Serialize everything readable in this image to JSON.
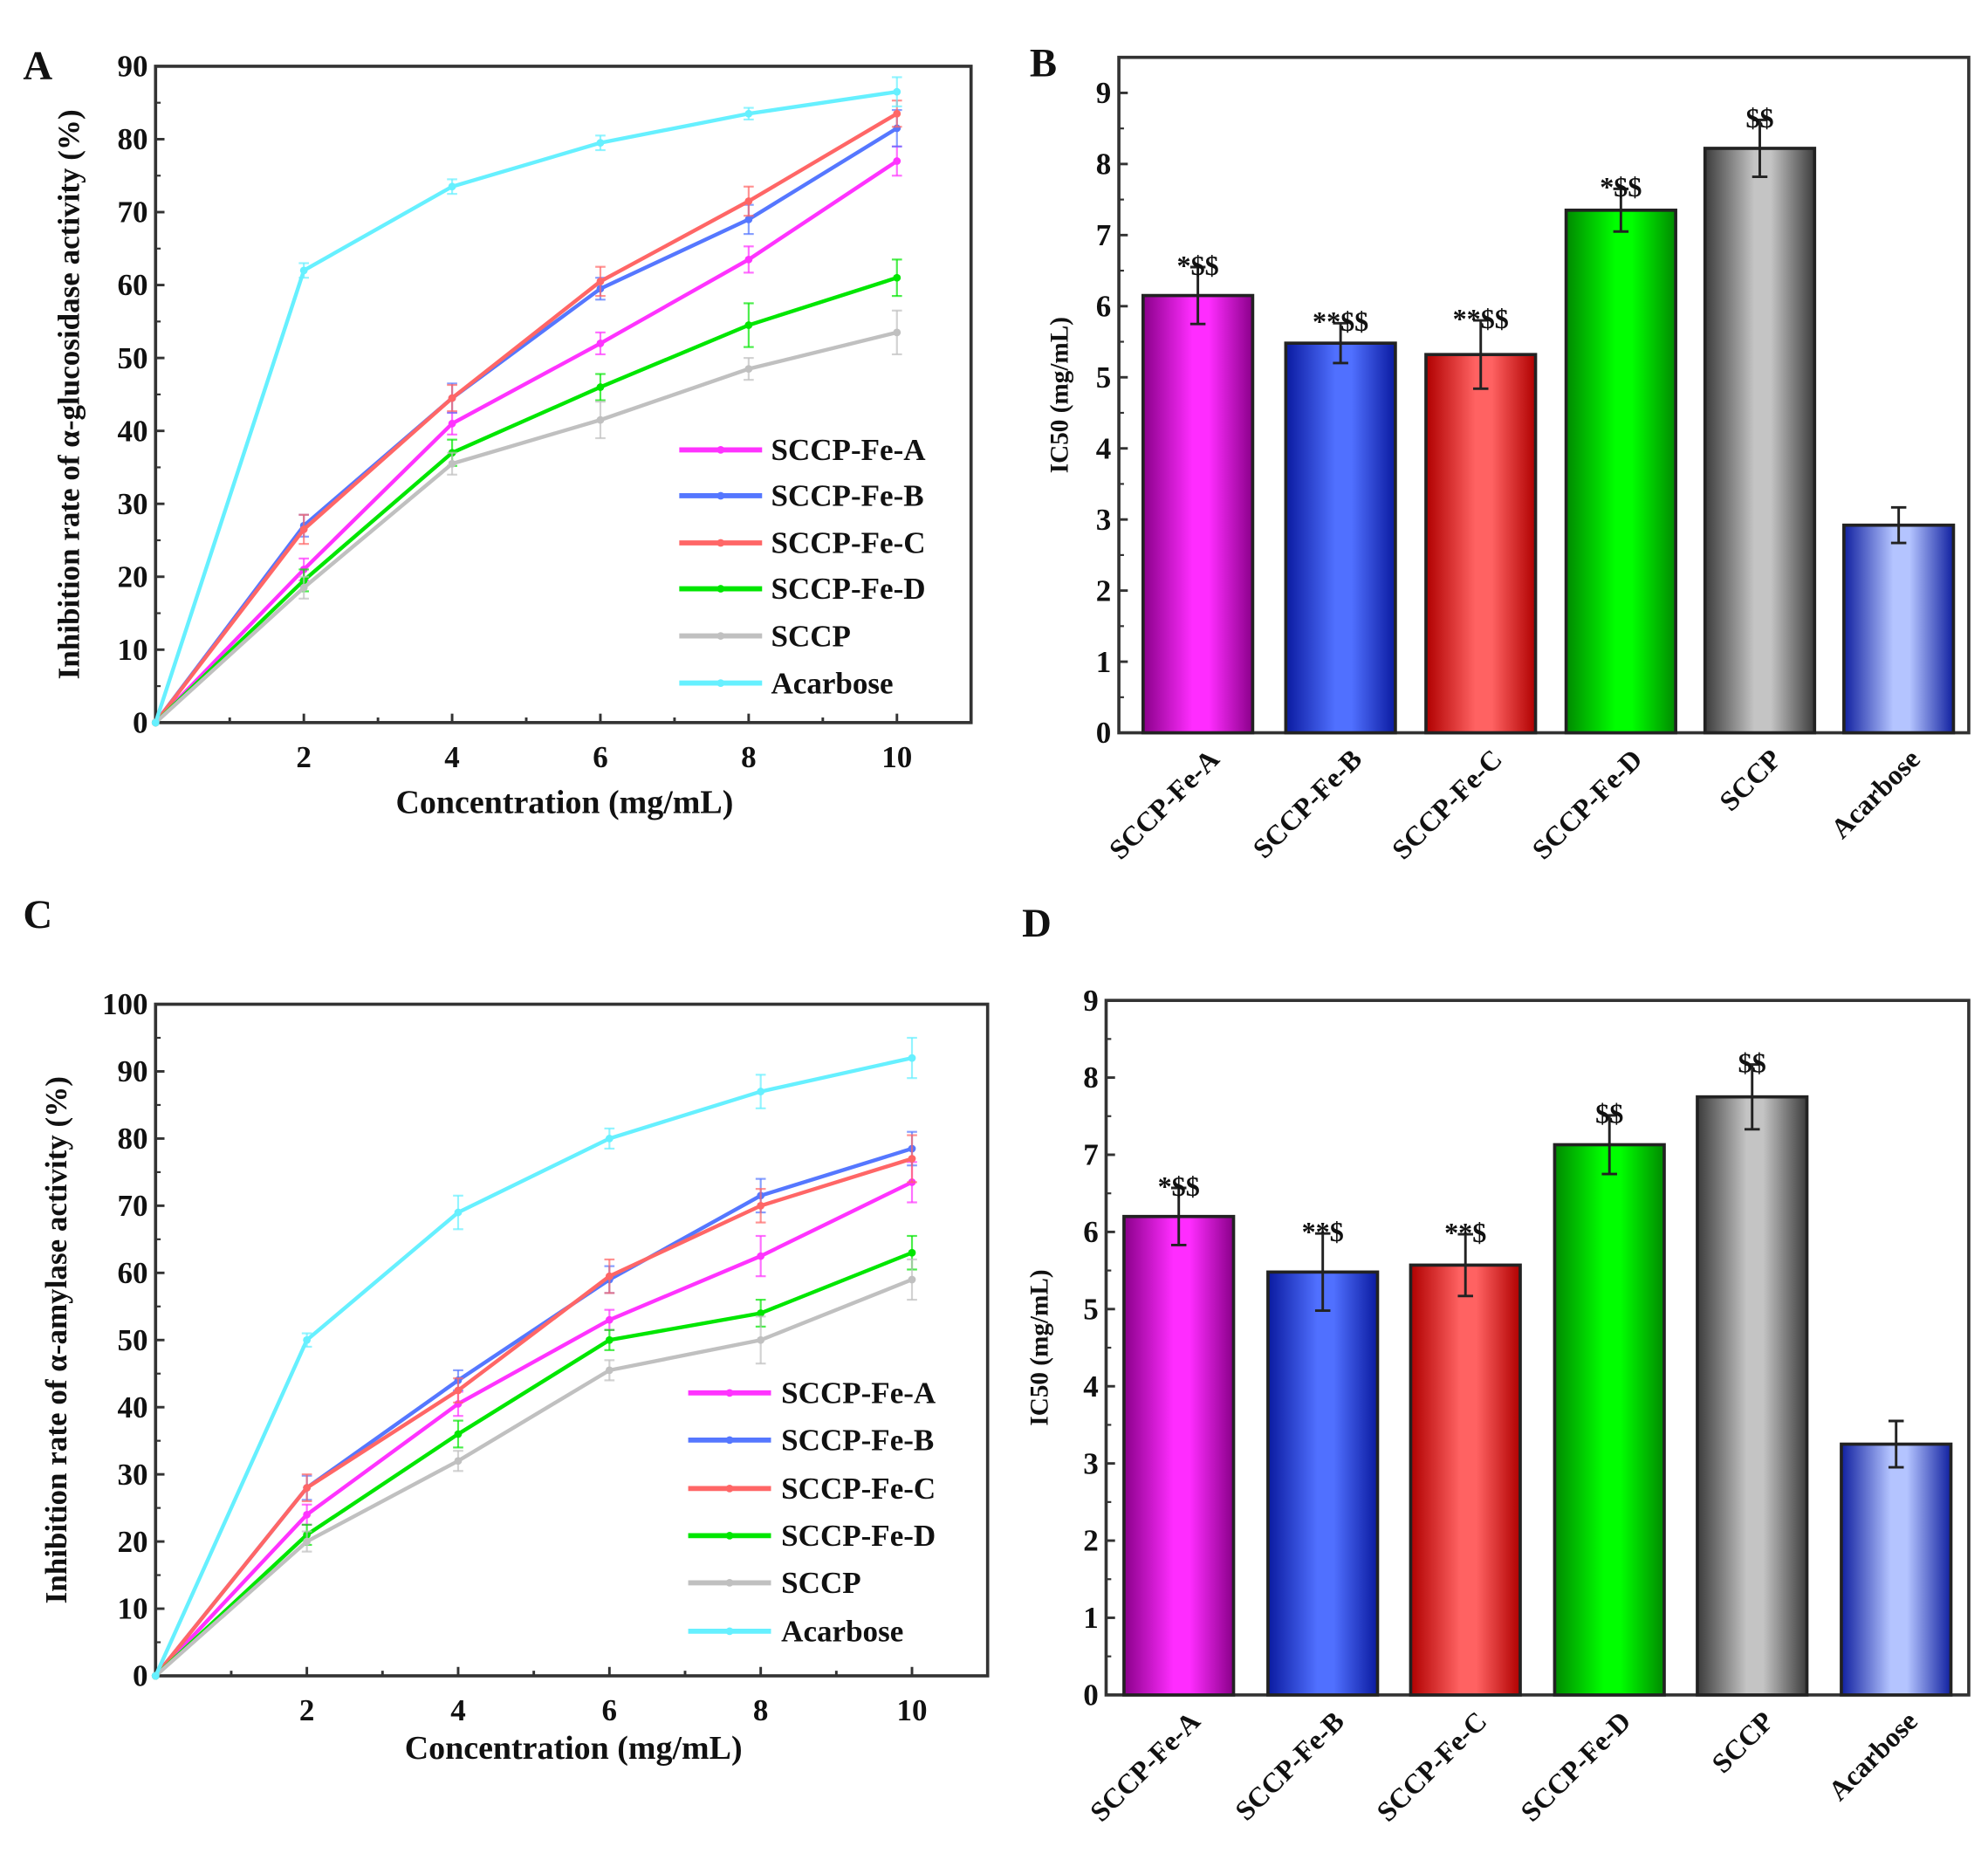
{
  "chart_data": [
    {
      "panel": "A",
      "type": "line",
      "xlabel": "Concentration (mg/mL)",
      "ylabel": "Inhibition rate of α-glucosidase activity (%)",
      "xlim": [
        0,
        11
      ],
      "ylim": [
        0,
        90
      ],
      "xticks": [
        2,
        4,
        6,
        8,
        10
      ],
      "yticks": [
        0,
        10,
        20,
        30,
        40,
        50,
        60,
        70,
        80,
        90
      ],
      "legend_position": "bottom-right",
      "x": [
        0,
        2,
        4,
        6,
        8,
        10
      ],
      "series": [
        {
          "name": "SCCP-Fe-A",
          "color": "#ff33ff",
          "values": [
            0,
            21,
            41,
            52,
            63.5,
            77
          ],
          "errors": [
            0,
            1.5,
            1.5,
            1.5,
            1.8,
            2
          ]
        },
        {
          "name": "SCCP-Fe-B",
          "color": "#5577ff",
          "values": [
            0,
            27,
            44.5,
            59.5,
            69,
            81.5
          ],
          "errors": [
            0,
            1.5,
            2,
            1.5,
            2,
            2.5
          ]
        },
        {
          "name": "SCCP-Fe-C",
          "color": "#ff6666",
          "values": [
            0,
            26.5,
            44.5,
            60.5,
            71.5,
            83.5
          ],
          "errors": [
            0,
            2,
            1.8,
            2,
            2,
            1.8
          ]
        },
        {
          "name": "SCCP-Fe-D",
          "color": "#00e600",
          "values": [
            0,
            19.5,
            37,
            46,
            54.5,
            61
          ],
          "errors": [
            0,
            1.5,
            1.8,
            1.8,
            3,
            2.5
          ]
        },
        {
          "name": "SCCP",
          "color": "#c0c0c0",
          "values": [
            0,
            18.5,
            35.5,
            41.5,
            48.5,
            53.5
          ],
          "errors": [
            0,
            1.5,
            1.5,
            2.5,
            1.5,
            3
          ]
        },
        {
          "name": "Acarbose",
          "color": "#66f0ff",
          "values": [
            0,
            62,
            73.5,
            79.5,
            83.5,
            86.5
          ],
          "errors": [
            0,
            1,
            1,
            1,
            0.8,
            2
          ]
        }
      ]
    },
    {
      "panel": "B",
      "type": "bar",
      "ylabel": "IC50 (mg/mL)",
      "ylim": [
        0,
        9.5
      ],
      "yticks": [
        0,
        1,
        2,
        3,
        4,
        5,
        6,
        7,
        8,
        9
      ],
      "categories": [
        "SCCP-Fe-A",
        "SCCP-Fe-B",
        "SCCP-Fe-C",
        "SCCP-Fe-D",
        "SCCP",
        "Acarbose"
      ],
      "values": [
        6.15,
        5.48,
        5.32,
        7.35,
        8.22,
        2.92
      ],
      "errors": [
        0.4,
        0.28,
        0.48,
        0.3,
        0.4,
        0.25
      ],
      "annotations": [
        "*$$",
        "**$$",
        "**$$",
        "*$$",
        "$$",
        ""
      ],
      "colors": [
        "#ff2cff",
        "#5070ff",
        "#ff6262",
        "#00ff00",
        "#c4c4c4",
        "#b4c4ff"
      ],
      "dark_colors": [
        "#8a008a",
        "#0a1aa0",
        "#b00000",
        "#008a00",
        "#3c3c3c",
        "#1020a0"
      ]
    },
    {
      "panel": "C",
      "type": "line",
      "xlabel": "Concentration (mg/mL)",
      "ylabel": "Inhibition rate of α-amylase activity (%)",
      "xlim": [
        0,
        11
      ],
      "ylim": [
        0,
        100
      ],
      "xticks": [
        2,
        4,
        6,
        8,
        10
      ],
      "yticks": [
        0,
        10,
        20,
        30,
        40,
        50,
        60,
        70,
        80,
        90,
        100
      ],
      "legend_position": "bottom-right",
      "x": [
        0,
        2,
        4,
        6,
        8,
        10
      ],
      "series": [
        {
          "name": "SCCP-Fe-A",
          "color": "#ff33ff",
          "values": [
            0,
            24,
            40.5,
            53,
            62.5,
            73.5
          ],
          "errors": [
            0,
            1.5,
            1.8,
            1.5,
            3,
            3
          ]
        },
        {
          "name": "SCCP-Fe-B",
          "color": "#5577ff",
          "values": [
            0,
            28,
            44,
            59,
            71.5,
            78.5
          ],
          "errors": [
            0,
            1.8,
            1.5,
            2,
            2.5,
            2.5
          ]
        },
        {
          "name": "SCCP-Fe-C",
          "color": "#ff6666",
          "values": [
            0,
            28,
            42.5,
            59.5,
            70,
            77
          ],
          "errors": [
            0,
            2,
            1.8,
            2.5,
            2.5,
            3.5
          ]
        },
        {
          "name": "SCCP-Fe-D",
          "color": "#00e600",
          "values": [
            0,
            21,
            36,
            50,
            54,
            63
          ],
          "errors": [
            0,
            1.5,
            2,
            1.5,
            2,
            2.5
          ]
        },
        {
          "name": "SCCP",
          "color": "#c0c0c0",
          "values": [
            0,
            20,
            32,
            45.5,
            50,
            59
          ],
          "errors": [
            0,
            1.5,
            1.5,
            1.5,
            3.5,
            3
          ]
        },
        {
          "name": "Acarbose",
          "color": "#66f0ff",
          "values": [
            0,
            50,
            69,
            80,
            87,
            92
          ],
          "errors": [
            0,
            1,
            2.5,
            1.5,
            2.5,
            3
          ]
        }
      ]
    },
    {
      "panel": "D",
      "type": "bar",
      "ylabel": "IC50 (mg/mL)",
      "ylim": [
        0,
        9
      ],
      "yticks": [
        0,
        1,
        2,
        3,
        4,
        5,
        6,
        7,
        8,
        9
      ],
      "categories": [
        "SCCP-Fe-A",
        "SCCP-Fe-B",
        "SCCP-Fe-C",
        "SCCP-Fe-D",
        "SCCP",
        "Acarbose"
      ],
      "values": [
        6.2,
        5.48,
        5.57,
        7.13,
        7.75,
        3.25
      ],
      "errors": [
        0.37,
        0.5,
        0.4,
        0.38,
        0.42,
        0.3
      ],
      "annotations": [
        "*$$",
        "**$",
        "**$",
        "$$",
        "$$",
        ""
      ],
      "colors": [
        "#ff2cff",
        "#5070ff",
        "#ff6262",
        "#00ff00",
        "#c4c4c4",
        "#b4c4ff"
      ],
      "dark_colors": [
        "#8a008a",
        "#0a1aa0",
        "#b00000",
        "#008a00",
        "#3c3c3c",
        "#1020a0"
      ]
    }
  ]
}
